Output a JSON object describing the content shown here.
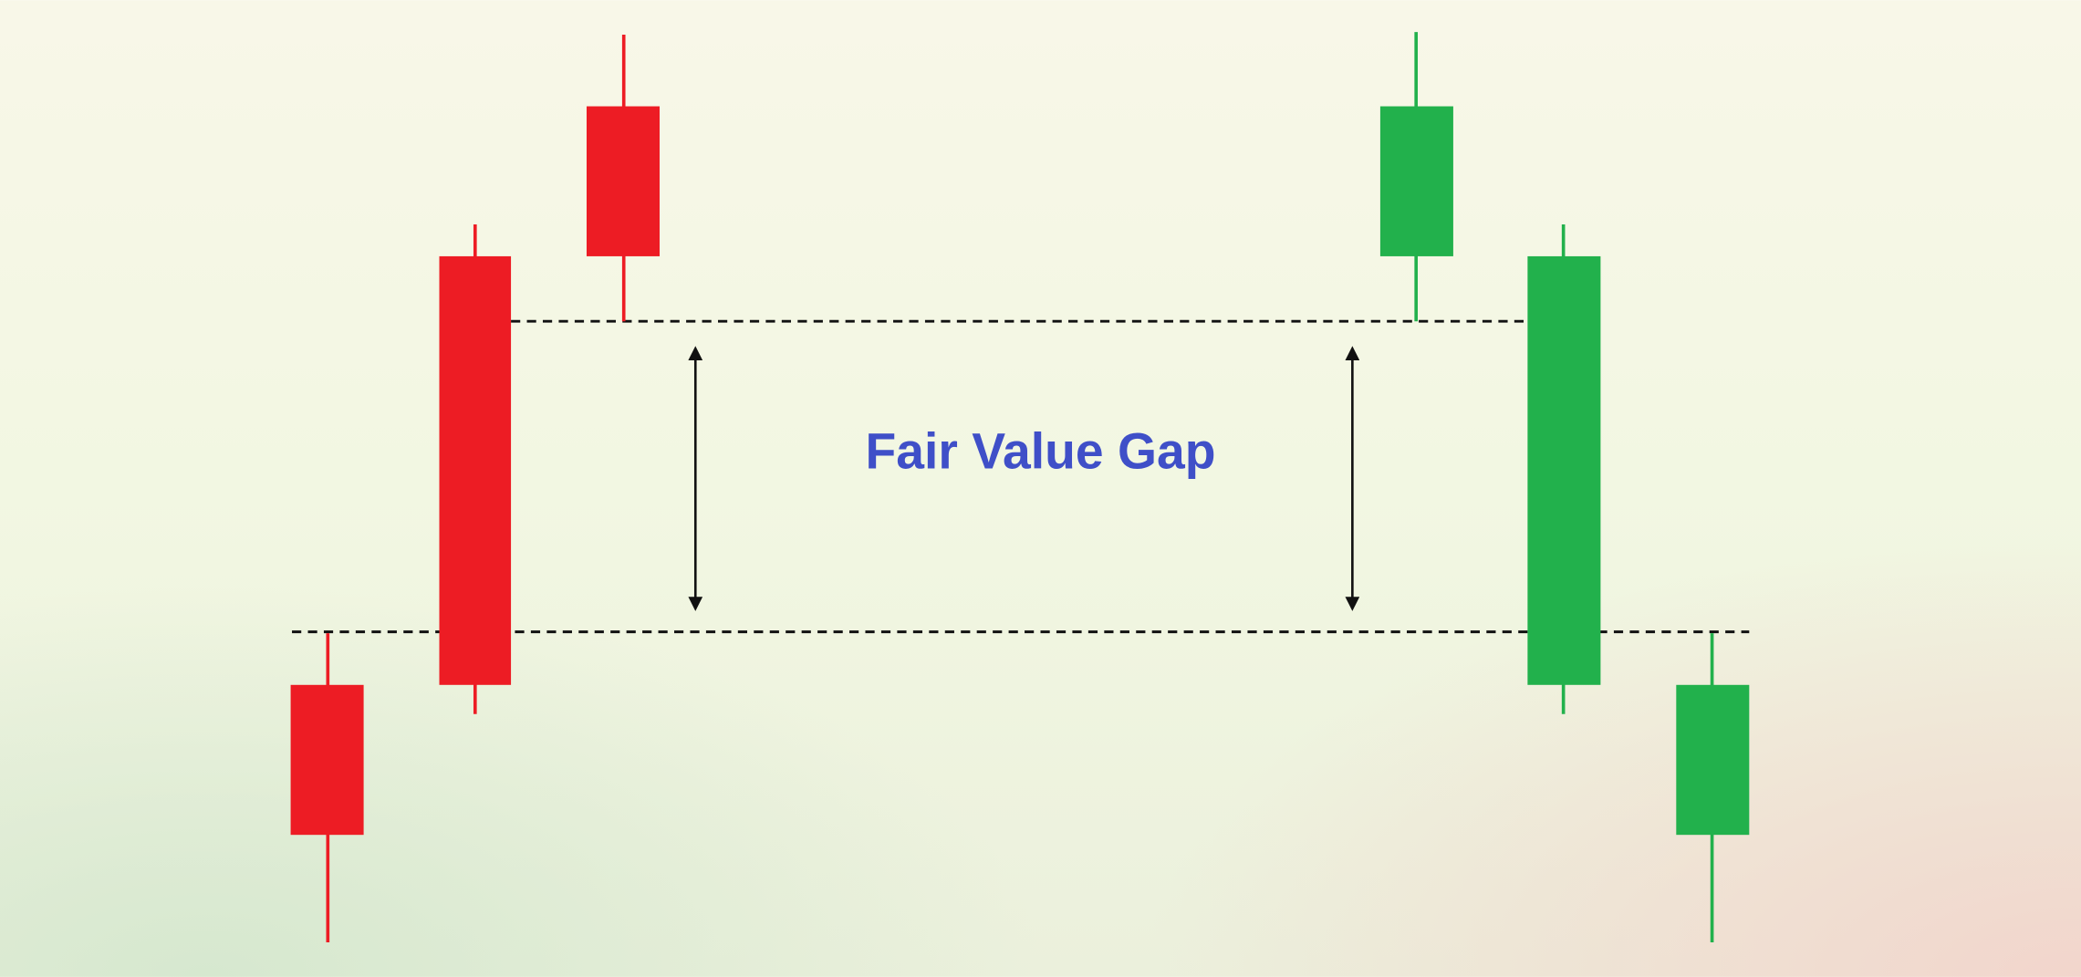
{
  "diagram": {
    "label": "Fair Value Gap"
  }
}
